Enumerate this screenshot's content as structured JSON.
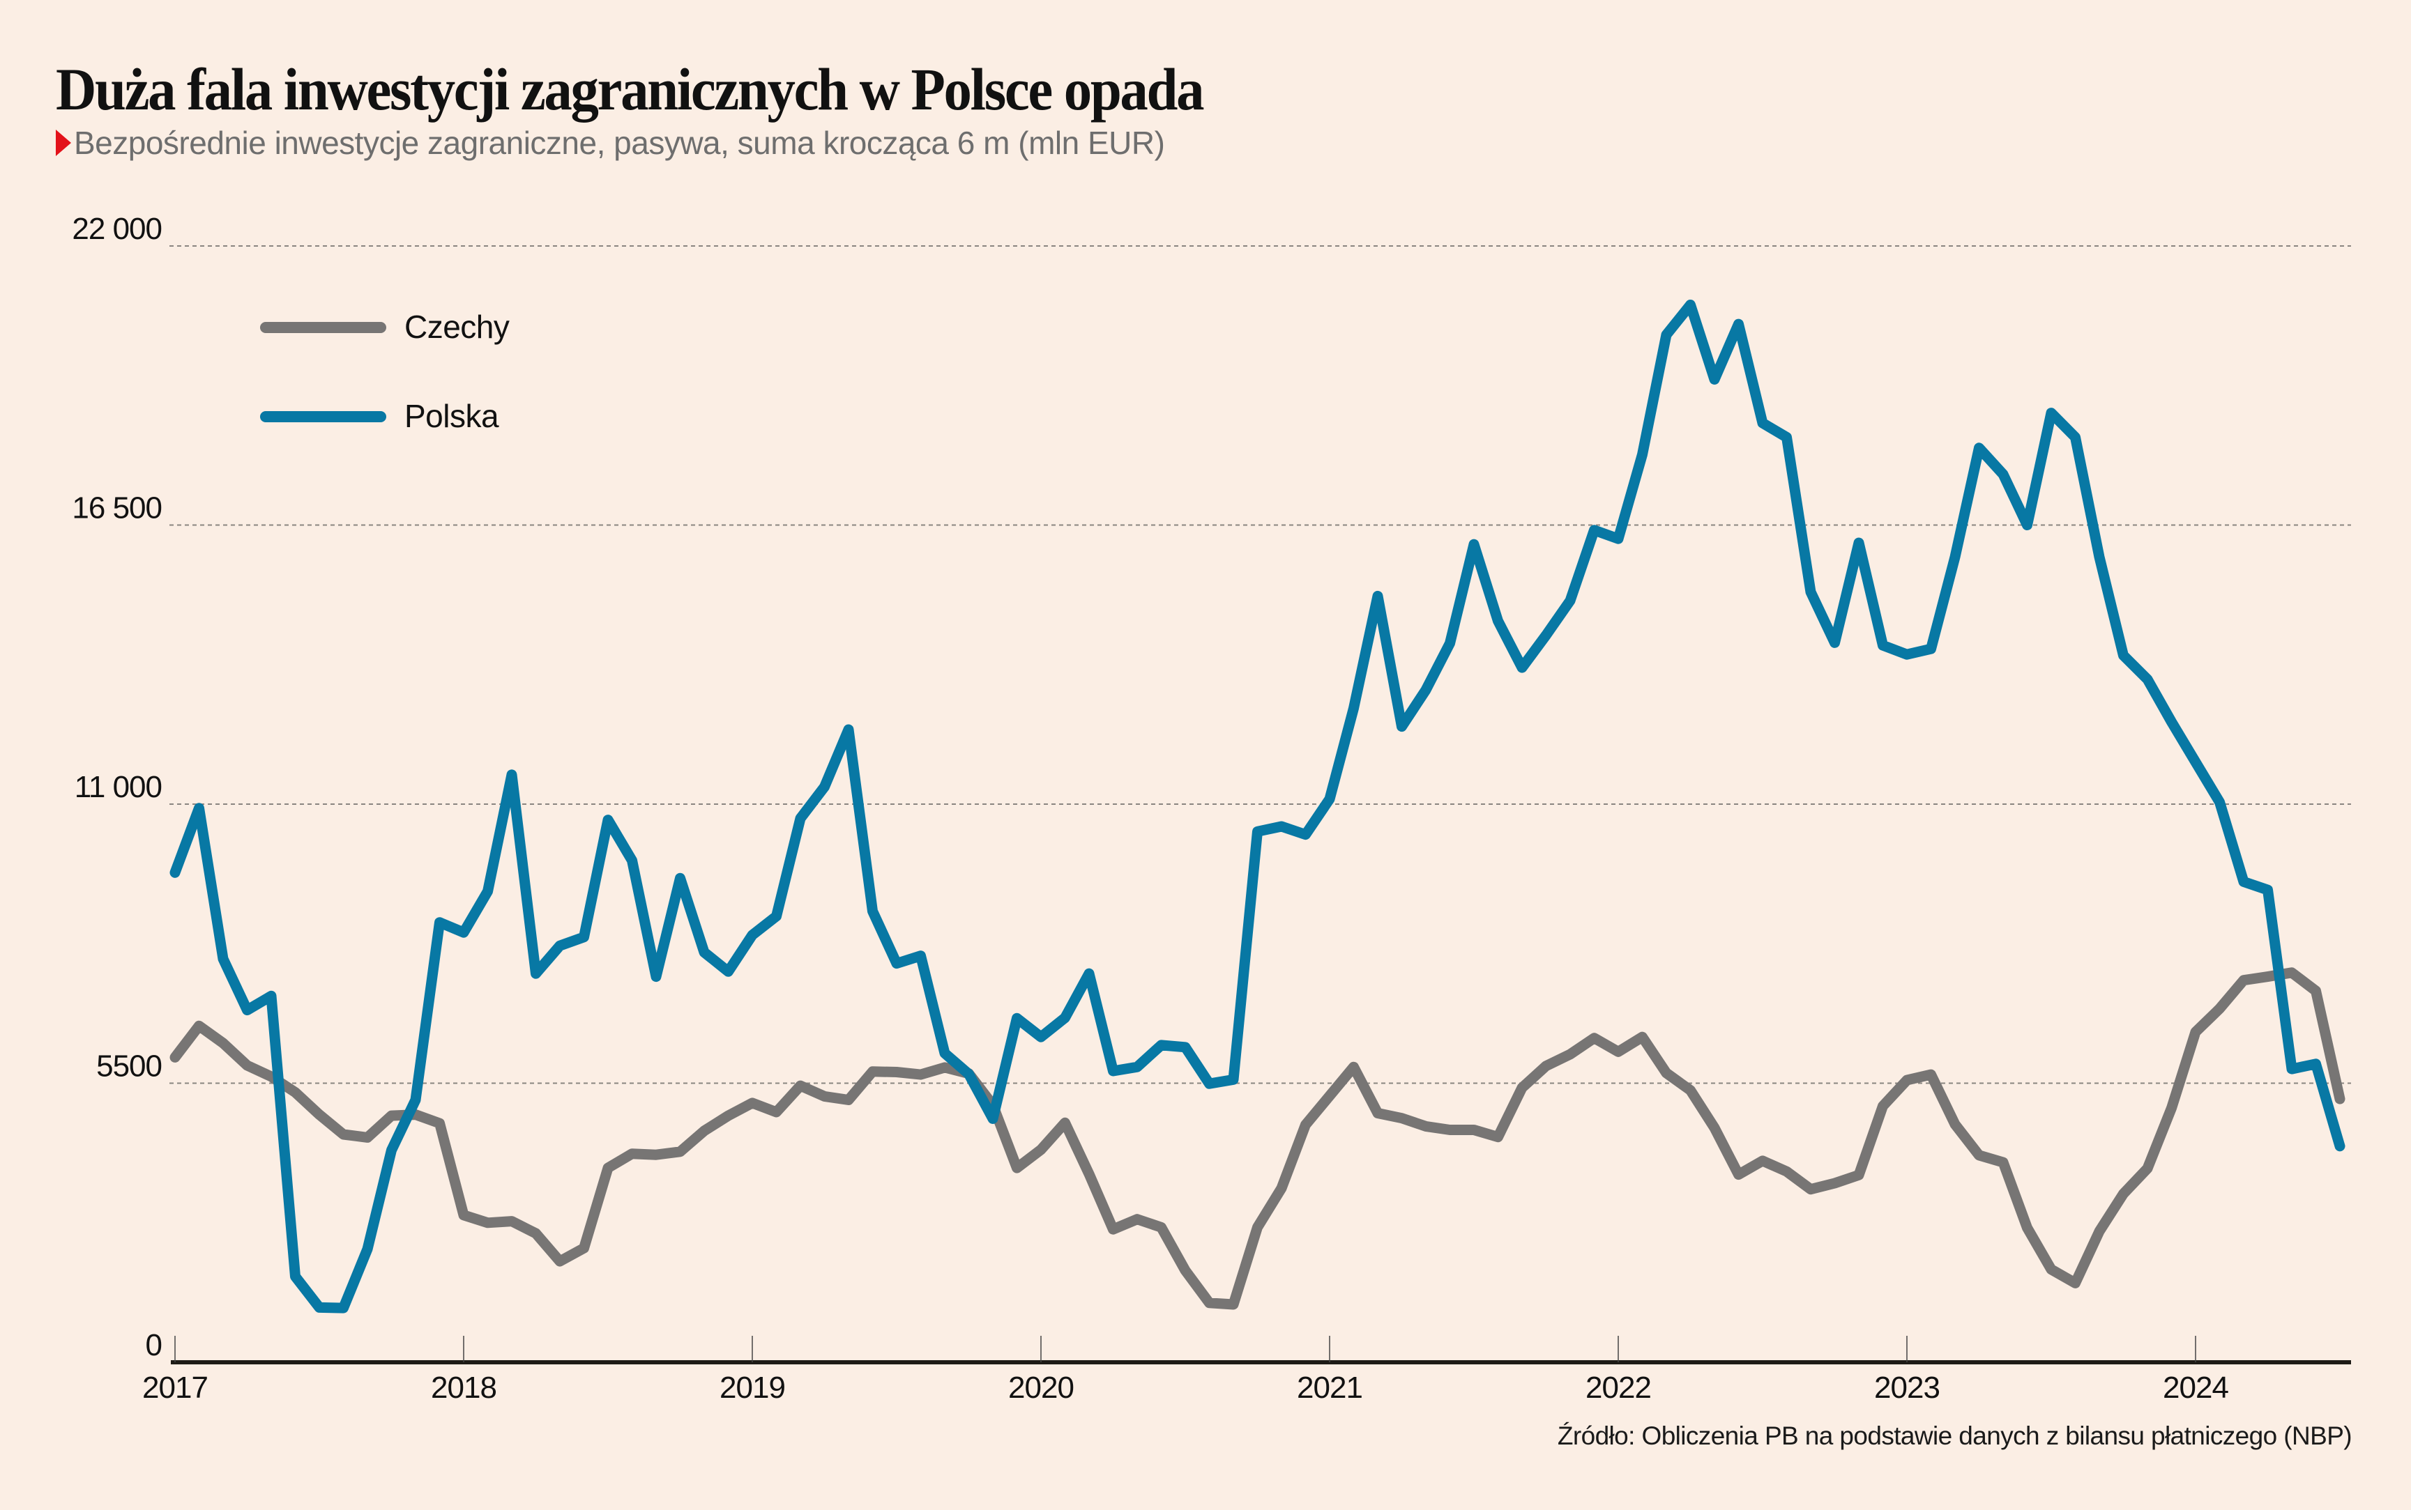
{
  "header": {
    "title": "Duża fala inwestycji zagranicznych w Polsce opada",
    "subtitle": "Bezpośrednie inwestycje zagraniczne, pasywa, suma krocząca 6 m (mln EUR)",
    "marker_color": "#e3121a"
  },
  "footer": {
    "source": "Źródło: Obliczenia PB na podstawie danych z bilansu płatniczego (NBP)"
  },
  "colors": {
    "background": "#fbeee4",
    "czechy": "#777574",
    "polska": "#0878a4",
    "grid": "#8a8580",
    "axis": "#1e1b16"
  },
  "chart_data": {
    "type": "line",
    "title": "Duża fala inwestycji zagranicznych w Polsce opada",
    "subtitle": "Bezpośrednie inwestycje zagraniczne, pasywa, suma krocząca 6 m (mln EUR)",
    "xlabel": "",
    "ylabel": "mln EUR",
    "frequency": "monthly",
    "x_start": "2017-01",
    "x_end": "2024-07",
    "ylim": [
      0,
      22000
    ],
    "yticks": [
      0,
      5500,
      11000,
      16500,
      22000
    ],
    "ytick_labels": [
      "0",
      "5500",
      "11 000",
      "16 500",
      "22 000"
    ],
    "xticks": [
      "2017",
      "2018",
      "2019",
      "2020",
      "2021",
      "2022",
      "2023",
      "2024"
    ],
    "grid": true,
    "legend_position": "top-left",
    "series": [
      {
        "name": "Czechy",
        "color": "#777574",
        "values": [
          6010,
          6630,
          6290,
          5850,
          5630,
          5320,
          4880,
          4490,
          4430,
          4860,
          4880,
          4710,
          2900,
          2750,
          2780,
          2540,
          1990,
          2250,
          3830,
          4110,
          4090,
          4150,
          4560,
          4860,
          5110,
          4930,
          5450,
          5240,
          5170,
          5730,
          5720,
          5670,
          5810,
          5690,
          5070,
          3830,
          4190,
          4720,
          3710,
          2620,
          2820,
          2660,
          1810,
          1170,
          1140,
          2660,
          3430,
          4680,
          5250,
          5820,
          4910,
          4810,
          4650,
          4580,
          4580,
          4440,
          5410,
          5840,
          6070,
          6390,
          6120,
          6410,
          5700,
          5360,
          4620,
          3700,
          3970,
          3760,
          3410,
          3530,
          3690,
          5050,
          5560,
          5670,
          4690,
          4080,
          3940,
          2650,
          1830,
          1560,
          2580,
          3320,
          3820,
          5010,
          6510,
          6970,
          7530,
          7600,
          7680,
          7320,
          5190
        ]
      },
      {
        "name": "Polska",
        "color": "#0878a4",
        "values": [
          9650,
          10920,
          7950,
          6940,
          7220,
          1690,
          1080,
          1070,
          2230,
          4180,
          5170,
          8670,
          8470,
          9280,
          11580,
          7660,
          8210,
          8380,
          10690,
          9890,
          7600,
          9540,
          8080,
          7700,
          8420,
          8790,
          10720,
          11340,
          12470,
          8890,
          7860,
          8010,
          6090,
          5680,
          4800,
          6780,
          6410,
          6790,
          7660,
          5740,
          5820,
          6250,
          6210,
          5490,
          5570,
          10460,
          10560,
          10400,
          11100,
          12890,
          15100,
          12530,
          13250,
          14170,
          16120,
          14610,
          13690,
          14330,
          15010,
          16400,
          16230,
          17890,
          20250,
          20840,
          19370,
          20460,
          18510,
          18230,
          15180,
          14180,
          16150,
          14130,
          13950,
          14060,
          15870,
          18020,
          17500,
          16500,
          18710,
          18230,
          15870,
          13930,
          13460,
          12620,
          11830,
          11040,
          9470,
          9310,
          5780,
          5880,
          4260
        ]
      }
    ]
  }
}
